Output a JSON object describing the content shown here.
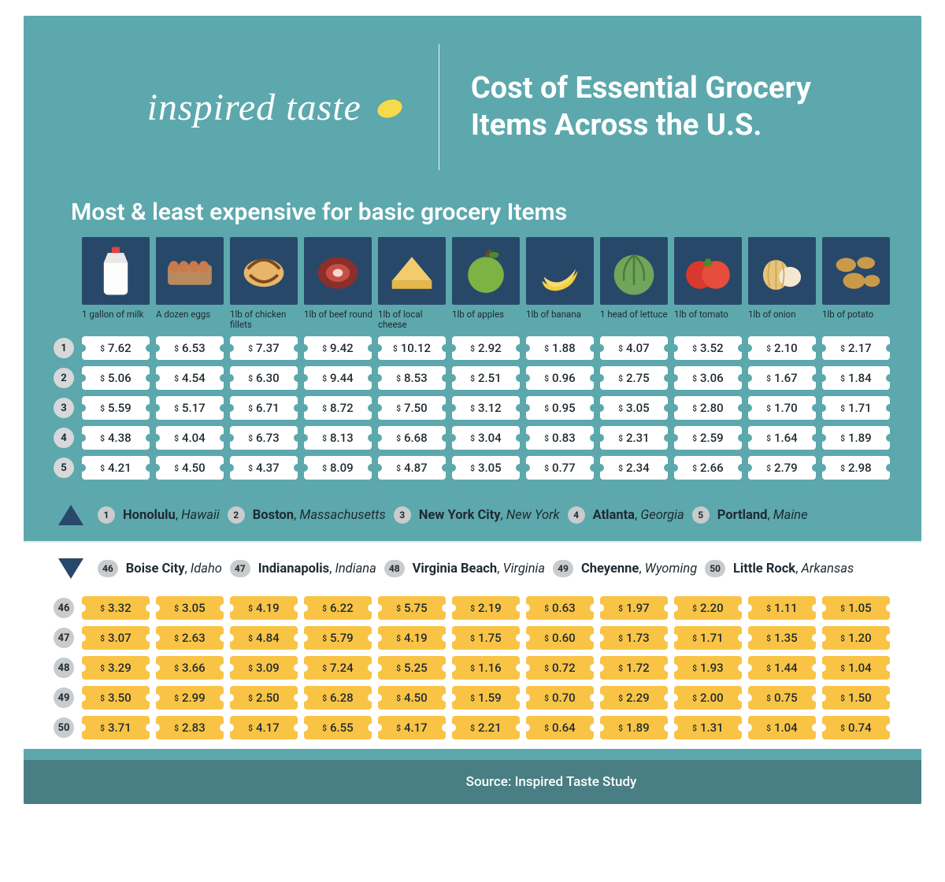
{
  "brand": "inspired taste",
  "title": "Cost of Essential Grocery Items Across the U.S.",
  "subhead": "Most & least expensive for basic grocery Items",
  "source": "Source: Inspired Taste Study",
  "items": [
    {
      "label": "1 gallon of milk",
      "icon": "milk"
    },
    {
      "label": "A dozen eggs",
      "icon": "eggs"
    },
    {
      "label": "1lb of chicken fillets",
      "icon": "chicken"
    },
    {
      "label": "1lb of beef round",
      "icon": "beef"
    },
    {
      "label": "1lb of local cheese",
      "icon": "cheese"
    },
    {
      "label": "1lb of apples",
      "icon": "apple"
    },
    {
      "label": "1lb of banana",
      "icon": "banana"
    },
    {
      "label": "1 head of lettuce",
      "icon": "lettuce"
    },
    {
      "label": "1lb of tomato",
      "icon": "tomato"
    },
    {
      "label": "1lb of onion",
      "icon": "onion"
    },
    {
      "label": "1lb of potato",
      "icon": "potato"
    }
  ],
  "top_cities": [
    {
      "rank": "1",
      "city": "Honolulu",
      "state": "Hawaii"
    },
    {
      "rank": "2",
      "city": "Boston",
      "state": "Massachusetts"
    },
    {
      "rank": "3",
      "city": "New York City",
      "state": "New York"
    },
    {
      "rank": "4",
      "city": "Atlanta",
      "state": "Georgia"
    },
    {
      "rank": "5",
      "city": "Portland",
      "state": "Maine"
    }
  ],
  "bottom_cities": [
    {
      "rank": "46",
      "city": "Boise City",
      "state": "Idaho"
    },
    {
      "rank": "47",
      "city": "Indianapolis",
      "state": "Indiana"
    },
    {
      "rank": "48",
      "city": "Virginia Beach",
      "state": "Virginia"
    },
    {
      "rank": "49",
      "city": "Cheyenne",
      "state": "Wyoming"
    },
    {
      "rank": "50",
      "city": "Little Rock",
      "state": "Arkansas"
    }
  ],
  "top_prices": [
    {
      "rank": "1",
      "values": [
        "7.62",
        "6.53",
        "7.37",
        "9.42",
        "10.12",
        "2.92",
        "1.88",
        "4.07",
        "3.52",
        "2.10",
        "2.17"
      ]
    },
    {
      "rank": "2",
      "values": [
        "5.06",
        "4.54",
        "6.30",
        "9.44",
        "8.53",
        "2.51",
        "0.96",
        "2.75",
        "3.06",
        "1.67",
        "1.84"
      ]
    },
    {
      "rank": "3",
      "values": [
        "5.59",
        "5.17",
        "6.71",
        "8.72",
        "7.50",
        "3.12",
        "0.95",
        "3.05",
        "2.80",
        "1.70",
        "1.71"
      ]
    },
    {
      "rank": "4",
      "values": [
        "4.38",
        "4.04",
        "6.73",
        "8.13",
        "6.68",
        "3.04",
        "0.83",
        "2.31",
        "2.59",
        "1.64",
        "1.89"
      ]
    },
    {
      "rank": "5",
      "values": [
        "4.21",
        "4.50",
        "4.37",
        "8.09",
        "4.87",
        "3.05",
        "0.77",
        "2.34",
        "2.66",
        "2.79",
        "2.98"
      ]
    }
  ],
  "bottom_prices": [
    {
      "rank": "46",
      "values": [
        "3.32",
        "3.05",
        "4.19",
        "6.22",
        "5.75",
        "2.19",
        "0.63",
        "1.97",
        "2.20",
        "1.11",
        "1.05"
      ]
    },
    {
      "rank": "47",
      "values": [
        "3.07",
        "2.63",
        "4.84",
        "5.79",
        "4.19",
        "1.75",
        "0.60",
        "1.73",
        "1.71",
        "1.35",
        "1.20"
      ]
    },
    {
      "rank": "48",
      "values": [
        "3.29",
        "3.66",
        "3.09",
        "7.24",
        "5.25",
        "1.16",
        "0.72",
        "1.72",
        "1.93",
        "1.44",
        "1.04"
      ]
    },
    {
      "rank": "49",
      "values": [
        "3.50",
        "2.99",
        "2.50",
        "6.28",
        "4.50",
        "1.59",
        "0.70",
        "2.29",
        "2.00",
        "0.75",
        "1.50"
      ]
    },
    {
      "rank": "50",
      "values": [
        "3.71",
        "2.83",
        "4.17",
        "6.55",
        "4.17",
        "2.21",
        "0.64",
        "1.89",
        "1.31",
        "1.04",
        "0.74"
      ]
    }
  ],
  "colors": {
    "teal": "#5ca8ad",
    "navy": "#28486a",
    "yellow": "#f9c445",
    "footer": "#497f84",
    "text": "#1f2a30",
    "pill": "#c9cbcd"
  }
}
